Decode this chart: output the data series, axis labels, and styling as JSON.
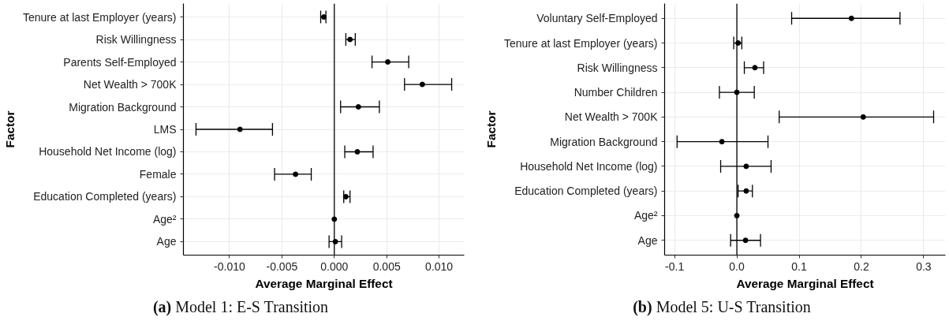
{
  "chart_data": [
    {
      "type": "scatter",
      "orientation": "horizontal",
      "xlabel": "Average Marginal Effect",
      "ylabel": "Factor",
      "annotations": [
        "(a) Model 1: E-S Transition"
      ],
      "categories": [
        "Tenure at last Employer (years)",
        "Risk Willingness",
        "Parents Self-Employed",
        "Net Wealth > 700K",
        "Migration Background",
        "LMS",
        "Household Net Income (log)",
        "Female",
        "Education Completed (years)",
        "Age²",
        "Age"
      ],
      "values": [
        -0.001,
        0.0015,
        0.0051,
        0.0084,
        0.0023,
        -0.009,
        0.0022,
        -0.0037,
        0.0011,
        0.0,
        0.0001
      ],
      "errors": [
        [
          -0.0013,
          -0.0008
        ],
        [
          0.0011,
          0.002
        ],
        [
          0.0036,
          0.0071
        ],
        [
          0.0067,
          0.0112
        ],
        [
          0.0006,
          0.0043
        ],
        [
          -0.0132,
          -0.0059
        ],
        [
          0.001,
          0.0037
        ],
        [
          -0.0057,
          -0.0022
        ],
        [
          0.0009,
          0.0015
        ],
        null,
        [
          -0.0005,
          0.0007
        ]
      ],
      "color": "#000000",
      "marker": "circle",
      "xlim": [
        -0.0144,
        0.0124
      ],
      "xticks": [
        {
          "value": -0.01,
          "label": "-0.010"
        },
        {
          "value": -0.005,
          "label": "-0.005"
        },
        {
          "value": 0,
          "label": "0.000"
        },
        {
          "value": 0.005,
          "label": "0.005"
        },
        {
          "value": 0.01,
          "label": "0.010"
        }
      ],
      "ref_lines": [
        {
          "axis": "x",
          "value": 0,
          "color": "#000000"
        }
      ],
      "grid": true
    },
    {
      "type": "scatter",
      "orientation": "horizontal",
      "xlabel": "Average Marginal Effect",
      "ylabel": "Factor",
      "annotations": [
        "(b) Model 5: U-S Transition"
      ],
      "categories": [
        "Voluntary Self-Employed",
        "Tenure at last Employer (years)",
        "Risk Willingness",
        "Number Children",
        "Net Wealth > 700K",
        "Migration Background",
        "Household Net Income (log)",
        "Education Completed (years)",
        "Age²",
        "Age"
      ],
      "values": [
        0.184,
        0.002,
        0.029,
        0.0,
        0.203,
        -0.024,
        0.015,
        0.015,
        0.0,
        0.014
      ],
      "errors": [
        [
          0.088,
          0.262
        ],
        [
          -0.005,
          0.008
        ],
        [
          0.012,
          0.043
        ],
        [
          -0.028,
          0.028
        ],
        [
          0.068,
          0.316
        ],
        [
          -0.096,
          0.05
        ],
        [
          -0.026,
          0.055
        ],
        [
          0.002,
          0.025
        ],
        null,
        [
          -0.01,
          0.038
        ]
      ],
      "color": "#000000",
      "marker": "circle",
      "xlim": [
        -0.116,
        0.335
      ],
      "xticks": [
        {
          "value": -0.1,
          "label": "-0.1"
        },
        {
          "value": 0,
          "label": "0.0"
        },
        {
          "value": 0.1,
          "label": "0.1"
        },
        {
          "value": 0.2,
          "label": "0.2"
        },
        {
          "value": 0.3,
          "label": "0.3"
        }
      ],
      "ref_lines": [
        {
          "axis": "x",
          "value": 0,
          "color": "#000000"
        }
      ],
      "grid": true
    }
  ]
}
